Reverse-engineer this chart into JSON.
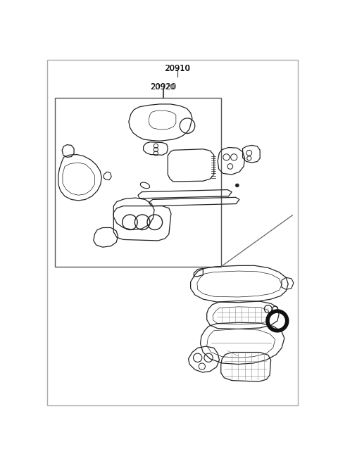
{
  "bg_color": "#ffffff",
  "line_color": "#333333",
  "label_20910": "20910",
  "label_20920": "20920",
  "part_line_color": "#222222",
  "part_lw": 0.9
}
